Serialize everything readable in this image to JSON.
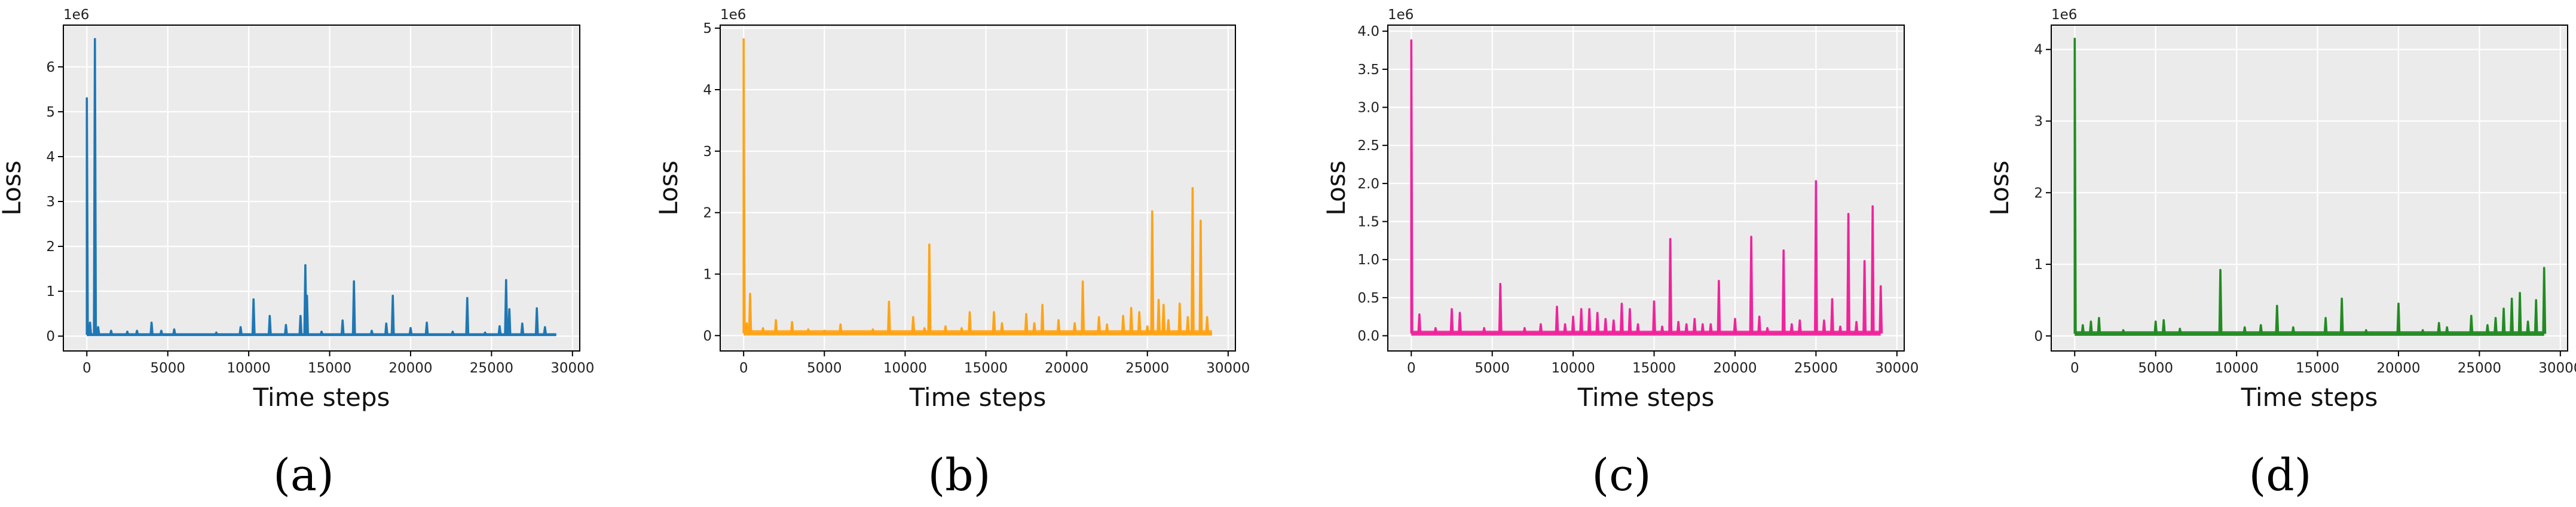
{
  "chart_data": [
    {
      "panel": "a",
      "caption": "(a)",
      "type": "line",
      "xlabel": "Time steps",
      "ylabel": "Loss",
      "y_offset_label": "1e6",
      "color": "#1f77b4",
      "background": "#ebebeb",
      "grid": true,
      "xlim": [
        -1450,
        30450
      ],
      "ylim": [
        -0.33,
        6.93
      ],
      "xticks": [
        0,
        5000,
        10000,
        15000,
        20000,
        25000,
        30000
      ],
      "xtick_labels": [
        "0",
        "5000",
        "10000",
        "15000",
        "20000",
        "25000",
        "30000"
      ],
      "yticks": [
        0,
        1,
        2,
        3,
        4,
        5,
        6
      ],
      "ytick_labels": [
        "0",
        "1",
        "2",
        "3",
        "4",
        "5",
        "6"
      ],
      "series": [
        {
          "x_max": 29000,
          "baseline": 0.03,
          "spikes": [
            [
              0,
              5.3
            ],
            [
              200,
              0.3
            ],
            [
              500,
              6.62
            ],
            [
              700,
              0.2
            ],
            [
              1500,
              0.12
            ],
            [
              2500,
              0.1
            ],
            [
              3100,
              0.12
            ],
            [
              4000,
              0.3
            ],
            [
              4600,
              0.12
            ],
            [
              5400,
              0.15
            ],
            [
              8000,
              0.08
            ],
            [
              9500,
              0.2
            ],
            [
              10300,
              0.82
            ],
            [
              11300,
              0.45
            ],
            [
              12300,
              0.25
            ],
            [
              13200,
              0.45
            ],
            [
              13500,
              1.58
            ],
            [
              13600,
              0.9
            ],
            [
              14500,
              0.1
            ],
            [
              15800,
              0.35
            ],
            [
              16500,
              1.22
            ],
            [
              17600,
              0.12
            ],
            [
              18500,
              0.28
            ],
            [
              18900,
              0.9
            ],
            [
              20000,
              0.18
            ],
            [
              21000,
              0.3
            ],
            [
              22600,
              0.1
            ],
            [
              23500,
              0.85
            ],
            [
              24600,
              0.08
            ],
            [
              25500,
              0.22
            ],
            [
              25900,
              1.25
            ],
            [
              26100,
              0.6
            ],
            [
              26900,
              0.28
            ],
            [
              27800,
              0.62
            ],
            [
              28300,
              0.2
            ]
          ]
        }
      ]
    },
    {
      "panel": "b",
      "caption": "(b)",
      "type": "line",
      "xlabel": "Time steps",
      "ylabel": "Loss",
      "y_offset_label": "1e6",
      "color": "#ffa315",
      "background": "#ebebeb",
      "grid": true,
      "xlim": [
        -1450,
        30450
      ],
      "ylim": [
        -0.25,
        5.05
      ],
      "xticks": [
        0,
        5000,
        10000,
        15000,
        20000,
        25000,
        30000
      ],
      "xtick_labels": [
        "0",
        "5000",
        "10000",
        "15000",
        "20000",
        "25000",
        "30000"
      ],
      "yticks": [
        0,
        1,
        2,
        3,
        4,
        5
      ],
      "ytick_labels": [
        "0",
        "1",
        "2",
        "3",
        "4",
        "5"
      ],
      "series": [
        {
          "x_max": 29000,
          "baseline": 0.04,
          "spikes": [
            [
              0,
              4.82
            ],
            [
              200,
              0.2
            ],
            [
              400,
              0.68
            ],
            [
              1200,
              0.12
            ],
            [
              2000,
              0.25
            ],
            [
              3000,
              0.22
            ],
            [
              4000,
              0.1
            ],
            [
              5000,
              0.08
            ],
            [
              6000,
              0.18
            ],
            [
              8000,
              0.1
            ],
            [
              9000,
              0.55
            ],
            [
              10500,
              0.3
            ],
            [
              11200,
              0.12
            ],
            [
              11500,
              1.48
            ],
            [
              12500,
              0.15
            ],
            [
              13500,
              0.12
            ],
            [
              14000,
              0.38
            ],
            [
              15500,
              0.38
            ],
            [
              16000,
              0.2
            ],
            [
              17500,
              0.35
            ],
            [
              18000,
              0.2
            ],
            [
              18500,
              0.5
            ],
            [
              19500,
              0.25
            ],
            [
              20500,
              0.2
            ],
            [
              21000,
              0.88
            ],
            [
              22000,
              0.3
            ],
            [
              22500,
              0.18
            ],
            [
              23500,
              0.32
            ],
            [
              24000,
              0.45
            ],
            [
              24500,
              0.38
            ],
            [
              25000,
              0.15
            ],
            [
              25300,
              2.02
            ],
            [
              25700,
              0.58
            ],
            [
              26000,
              0.5
            ],
            [
              26300,
              0.25
            ],
            [
              27000,
              0.52
            ],
            [
              27500,
              0.3
            ],
            [
              27800,
              2.4
            ],
            [
              28300,
              1.87
            ],
            [
              28700,
              0.3
            ]
          ]
        }
      ]
    },
    {
      "panel": "c",
      "caption": "(c)",
      "type": "line",
      "xlabel": "Time steps",
      "ylabel": "Loss",
      "y_offset_label": "1e6",
      "color": "#f0239c",
      "background": "#ebebeb",
      "grid": true,
      "xlim": [
        -1450,
        30450
      ],
      "ylim": [
        -0.2,
        4.08
      ],
      "xticks": [
        0,
        5000,
        10000,
        15000,
        20000,
        25000,
        30000
      ],
      "xtick_labels": [
        "0",
        "5000",
        "10000",
        "15000",
        "20000",
        "25000",
        "30000"
      ],
      "yticks": [
        0,
        0.5,
        1,
        1.5,
        2,
        2.5,
        3,
        3.5,
        4
      ],
      "ytick_labels": [
        "0.0",
        "0.5",
        "1.0",
        "1.5",
        "2.0",
        "2.5",
        "3.0",
        "3.5",
        "4.0"
      ],
      "series": [
        {
          "x_max": 29000,
          "baseline": 0.03,
          "spikes": [
            [
              0,
              3.88
            ],
            [
              500,
              0.28
            ],
            [
              1500,
              0.1
            ],
            [
              2500,
              0.35
            ],
            [
              3000,
              0.3
            ],
            [
              4500,
              0.1
            ],
            [
              5500,
              0.68
            ],
            [
              7000,
              0.1
            ],
            [
              8000,
              0.15
            ],
            [
              9000,
              0.38
            ],
            [
              9500,
              0.15
            ],
            [
              10000,
              0.25
            ],
            [
              10500,
              0.35
            ],
            [
              11000,
              0.35
            ],
            [
              11500,
              0.3
            ],
            [
              12000,
              0.22
            ],
            [
              12500,
              0.2
            ],
            [
              13000,
              0.42
            ],
            [
              13500,
              0.35
            ],
            [
              14000,
              0.15
            ],
            [
              15000,
              0.45
            ],
            [
              15500,
              0.12
            ],
            [
              16000,
              1.27
            ],
            [
              16500,
              0.18
            ],
            [
              17000,
              0.15
            ],
            [
              17500,
              0.22
            ],
            [
              18000,
              0.15
            ],
            [
              18500,
              0.15
            ],
            [
              19000,
              0.72
            ],
            [
              20000,
              0.22
            ],
            [
              21000,
              1.3
            ],
            [
              21500,
              0.25
            ],
            [
              22000,
              0.1
            ],
            [
              23000,
              1.12
            ],
            [
              23500,
              0.15
            ],
            [
              24000,
              0.2
            ],
            [
              25000,
              2.03
            ],
            [
              25500,
              0.2
            ],
            [
              26000,
              0.48
            ],
            [
              26500,
              0.12
            ],
            [
              27000,
              1.6
            ],
            [
              27500,
              0.18
            ],
            [
              28000,
              0.98
            ],
            [
              28500,
              1.7
            ],
            [
              29000,
              0.65
            ]
          ]
        }
      ]
    },
    {
      "panel": "d",
      "caption": "(d)",
      "type": "line",
      "xlabel": "Time steps",
      "ylabel": "Loss",
      "y_offset_label": "1e6",
      "color": "#228b22",
      "background": "#ebebeb",
      "grid": true,
      "xlim": [
        -1450,
        30450
      ],
      "ylim": [
        -0.21,
        4.34
      ],
      "xticks": [
        0,
        5000,
        10000,
        15000,
        20000,
        25000,
        30000
      ],
      "xtick_labels": [
        "0",
        "5000",
        "10000",
        "15000",
        "20000",
        "25000",
        "30000"
      ],
      "yticks": [
        0,
        1,
        2,
        3,
        4
      ],
      "ytick_labels": [
        "0",
        "1",
        "2",
        "3",
        "4"
      ],
      "series": [
        {
          "x_max": 29000,
          "baseline": 0.03,
          "spikes": [
            [
              0,
              4.15
            ],
            [
              500,
              0.15
            ],
            [
              1000,
              0.2
            ],
            [
              1500,
              0.25
            ],
            [
              3000,
              0.08
            ],
            [
              5000,
              0.2
            ],
            [
              5500,
              0.22
            ],
            [
              6500,
              0.1
            ],
            [
              9000,
              0.92
            ],
            [
              10500,
              0.12
            ],
            [
              11500,
              0.15
            ],
            [
              12500,
              0.42
            ],
            [
              13500,
              0.12
            ],
            [
              15500,
              0.25
            ],
            [
              16500,
              0.52
            ],
            [
              18000,
              0.08
            ],
            [
              20000,
              0.45
            ],
            [
              21500,
              0.08
            ],
            [
              22500,
              0.18
            ],
            [
              23000,
              0.12
            ],
            [
              24500,
              0.28
            ],
            [
              25500,
              0.15
            ],
            [
              26000,
              0.25
            ],
            [
              26500,
              0.38
            ],
            [
              27000,
              0.52
            ],
            [
              27500,
              0.6
            ],
            [
              28000,
              0.2
            ],
            [
              28500,
              0.5
            ],
            [
              29000,
              0.95
            ]
          ]
        }
      ]
    }
  ]
}
